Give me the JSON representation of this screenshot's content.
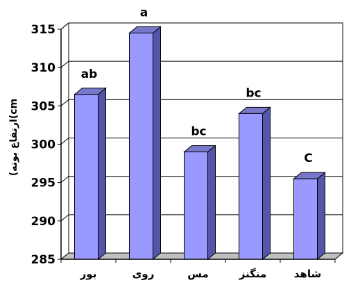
{
  "chart_data": {
    "type": "bar",
    "categories": [
      "بور",
      "روی",
      "مس",
      "منگنز",
      "شاهد"
    ],
    "values": [
      306.5,
      314.5,
      299,
      304,
      295.5
    ],
    "data_labels": [
      "ab",
      "a",
      "bc",
      "bc",
      "C"
    ],
    "title": "",
    "xlabel": "",
    "ylabel": "(ارتفاع بوته(cm",
    "ylim": [
      285,
      315
    ],
    "yticks": [
      285,
      290,
      295,
      300,
      305,
      310,
      315
    ],
    "grid": true,
    "legend": "none",
    "bar_color": "#9999ff",
    "bar_side_color": "#5555aa",
    "bar_top_color": "#7777cc",
    "floor_color": "#c0c0c0",
    "wall_color": "#ffffff"
  }
}
